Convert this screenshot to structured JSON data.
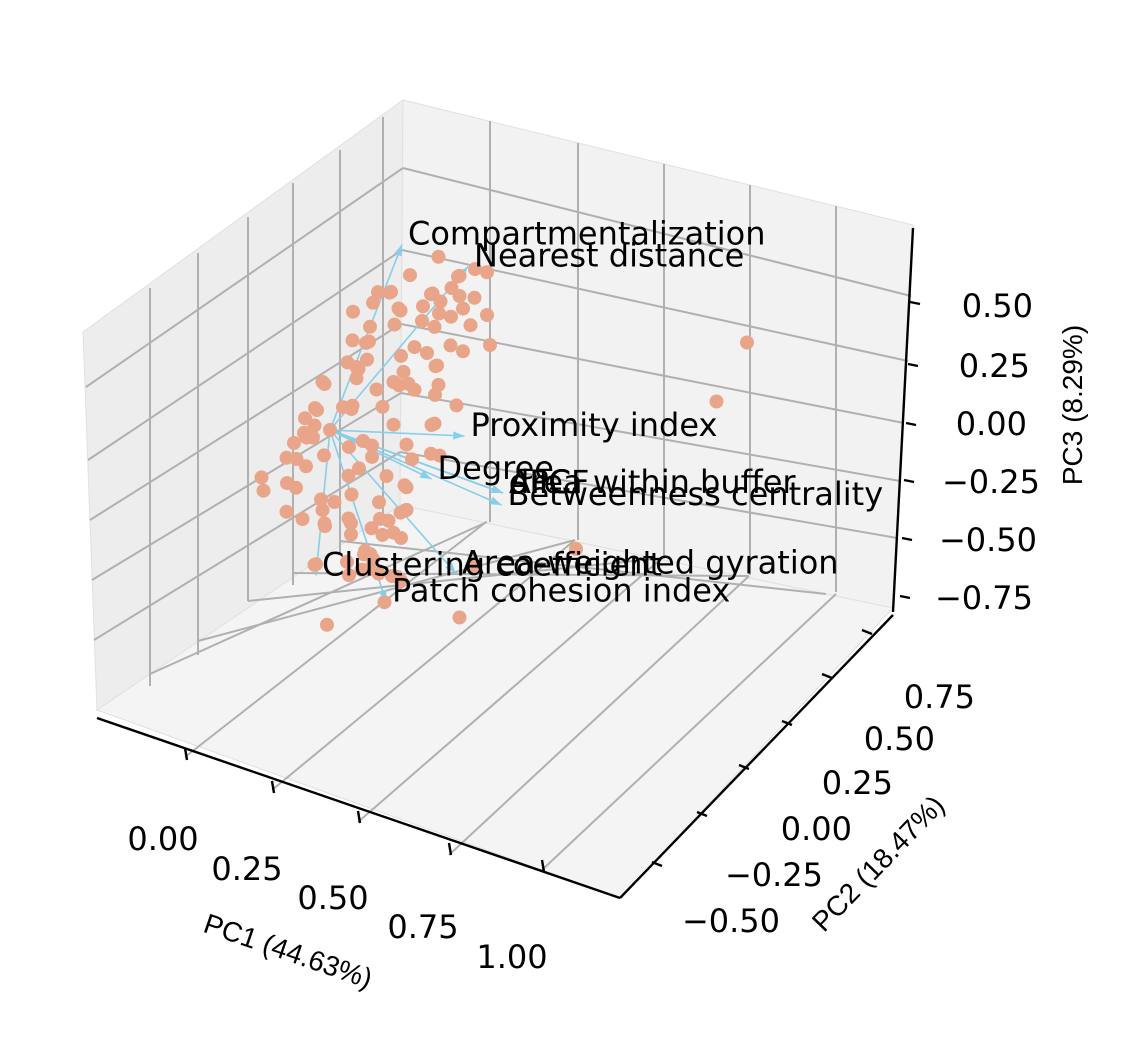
{
  "chart_data": {
    "type": "scatter",
    "projection": "3d",
    "grid": true,
    "title": "",
    "xlabel": "PC1 (44.63%)",
    "ylabel": "PC2 (18.47%)",
    "zlabel": "PC3 (8.29%)",
    "x_ticks": [
      "0.00",
      "0.25",
      "0.50",
      "0.75",
      "1.00"
    ],
    "y_ticks": [
      "−0.50",
      "−0.25",
      "0.00",
      "0.25",
      "0.50",
      "0.75"
    ],
    "z_ticks": [
      "−0.75",
      "−0.50",
      "−0.25",
      "0.00",
      "0.25",
      "0.50"
    ],
    "xlim": [
      -0.15,
      1.3
    ],
    "ylim": [
      -0.6,
      0.85
    ],
    "zlim": [
      -0.85,
      0.7
    ],
    "point_color": "#E9A58A",
    "loading_color": "#87CEEB",
    "loading_origin": [
      0.0,
      0.0,
      0.0
    ],
    "loadings": [
      {
        "label": "Compartmentalization",
        "x": 0.05,
        "y": 0.2,
        "z": 0.55
      },
      {
        "label": "Nearest distance",
        "x": 0.15,
        "y": 0.3,
        "z": 0.45
      },
      {
        "label": "Proximity index",
        "x": 0.3,
        "y": 0.1,
        "z": 0.05
      },
      {
        "label": "dPC",
        "x": 0.45,
        "y": 0.05,
        "z": -0.05
      },
      {
        "label": "dIIC",
        "x": 0.45,
        "y": 0.05,
        "z": -0.05
      },
      {
        "label": "dPCF",
        "x": 0.45,
        "y": 0.05,
        "z": -0.05
      },
      {
        "label": "Area within buffer",
        "x": 0.45,
        "y": 0.05,
        "z": -0.05
      },
      {
        "label": "Degree",
        "x": 0.2,
        "y": 0.1,
        "z": -0.15
      },
      {
        "label": "Betweenness centrality",
        "x": 0.4,
        "y": 0.1,
        "z": -0.15
      },
      {
        "label": "Area-weighted gyration",
        "x": 0.35,
        "y": 0.0,
        "z": -0.35
      },
      {
        "label": "Clustering coefficient",
        "x": -0.1,
        "y": 0.05,
        "z": -0.6
      },
      {
        "label": "Patch cohesion index",
        "x": 0.1,
        "y": 0.05,
        "z": -0.6
      }
    ],
    "points": [
      {
        "x": 0.3,
        "y": 0.1,
        "z": 0.55
      },
      {
        "x": 0.95,
        "y": 0.3,
        "z": 0.55
      },
      {
        "x": 0.9,
        "y": 0.25,
        "z": 0.35
      },
      {
        "x": 0.7,
        "y": 0.0,
        "z": -0.1
      },
      {
        "x": 0.4,
        "y": 0.0,
        "z": -0.3
      },
      {
        "x": 0.4,
        "y": -0.05,
        "z": -0.45
      },
      {
        "x": 0.2,
        "y": 0.15,
        "z": 0.45
      },
      {
        "x": 0.22,
        "y": 0.2,
        "z": 0.4
      },
      {
        "x": 0.02,
        "y": 0.05,
        "z": 0.05
      },
      {
        "x": 0.05,
        "y": 0.1,
        "z": 0.1
      },
      {
        "x": 0.08,
        "y": 0.15,
        "z": 0.2
      },
      {
        "x": 0.1,
        "y": 0.2,
        "z": 0.3
      },
      {
        "x": 0.12,
        "y": 0.15,
        "z": 0.25
      },
      {
        "x": 0.15,
        "y": 0.2,
        "z": 0.35
      },
      {
        "x": 0.1,
        "y": 0.1,
        "z": 0.15
      },
      {
        "x": 0.0,
        "y": 0.0,
        "z": 0.0
      },
      {
        "x": -0.05,
        "y": 0.0,
        "z": -0.05
      },
      {
        "x": -0.08,
        "y": 0.05,
        "z": 0.0
      },
      {
        "x": -0.1,
        "y": 0.1,
        "z": 0.05
      },
      {
        "x": -0.12,
        "y": 0.05,
        "z": -0.1
      },
      {
        "x": -0.05,
        "y": 0.15,
        "z": 0.1
      },
      {
        "x": 0.0,
        "y": 0.1,
        "z": 0.15
      },
      {
        "x": 0.05,
        "y": 0.05,
        "z": -0.05
      },
      {
        "x": 0.08,
        "y": 0.0,
        "z": -0.1
      },
      {
        "x": 0.1,
        "y": -0.05,
        "z": -0.15
      },
      {
        "x": 0.05,
        "y": -0.05,
        "z": -0.2
      },
      {
        "x": 0.0,
        "y": -0.1,
        "z": -0.25
      },
      {
        "x": 0.02,
        "y": -0.05,
        "z": -0.3
      },
      {
        "x": 0.05,
        "y": 0.0,
        "z": -0.35
      },
      {
        "x": 0.08,
        "y": -0.05,
        "z": -0.4
      },
      {
        "x": 0.1,
        "y": 0.0,
        "z": -0.45
      },
      {
        "x": 0.12,
        "y": 0.05,
        "z": -0.5
      },
      {
        "x": 0.06,
        "y": 0.05,
        "z": -0.45
      },
      {
        "x": 0.0,
        "y": 0.05,
        "z": -0.35
      },
      {
        "x": -0.03,
        "y": 0.0,
        "z": -0.3
      },
      {
        "x": -0.06,
        "y": -0.05,
        "z": -0.2
      },
      {
        "x": -0.1,
        "y": 0.0,
        "z": -0.15
      },
      {
        "x": -0.13,
        "y": 0.1,
        "z": -0.05
      },
      {
        "x": -0.15,
        "y": 0.15,
        "z": 0.0
      },
      {
        "x": -0.12,
        "y": 0.2,
        "z": 0.05
      },
      {
        "x": -0.1,
        "y": 0.25,
        "z": 0.1
      },
      {
        "x": -0.06,
        "y": 0.2,
        "z": 0.15
      },
      {
        "x": -0.02,
        "y": 0.15,
        "z": 0.2
      },
      {
        "x": 0.02,
        "y": 0.2,
        "z": 0.25
      },
      {
        "x": 0.06,
        "y": 0.25,
        "z": 0.3
      },
      {
        "x": 0.1,
        "y": 0.3,
        "z": 0.35
      },
      {
        "x": 0.14,
        "y": 0.25,
        "z": 0.3
      },
      {
        "x": 0.18,
        "y": 0.2,
        "z": 0.25
      },
      {
        "x": 0.16,
        "y": 0.1,
        "z": 0.15
      },
      {
        "x": 0.14,
        "y": 0.05,
        "z": 0.05
      },
      {
        "x": 0.12,
        "y": 0.0,
        "z": 0.0
      },
      {
        "x": 0.16,
        "y": 0.05,
        "z": 0.2
      },
      {
        "x": 0.2,
        "y": 0.1,
        "z": 0.3
      },
      {
        "x": 0.18,
        "y": 0.15,
        "z": 0.35
      },
      {
        "x": 0.04,
        "y": 0.0,
        "z": 0.1
      },
      {
        "x": 0.0,
        "y": -0.05,
        "z": 0.05
      },
      {
        "x": -0.02,
        "y": 0.0,
        "z": -0.1
      },
      {
        "x": 0.03,
        "y": 0.1,
        "z": -0.15
      },
      {
        "x": 0.07,
        "y": 0.1,
        "z": -0.2
      },
      {
        "x": 0.09,
        "y": 0.05,
        "z": -0.25
      },
      {
        "x": 0.11,
        "y": 0.0,
        "z": -0.3
      },
      {
        "x": 0.13,
        "y": -0.05,
        "z": -0.35
      },
      {
        "x": 0.03,
        "y": -0.1,
        "z": -0.4
      },
      {
        "x": -0.01,
        "y": -0.05,
        "z": -0.45
      },
      {
        "x": 0.04,
        "y": 0.0,
        "z": -0.5
      },
      {
        "x": 0.09,
        "y": 0.1,
        "z": -0.55
      },
      {
        "x": 0.14,
        "y": 0.0,
        "z": -0.55
      },
      {
        "x": 0.06,
        "y": -0.1,
        "z": -0.6
      },
      {
        "x": -0.04,
        "y": 0.1,
        "z": -0.25
      },
      {
        "x": -0.08,
        "y": 0.15,
        "z": -0.2
      },
      {
        "x": -0.11,
        "y": 0.2,
        "z": -0.1
      },
      {
        "x": -0.14,
        "y": 0.25,
        "z": -0.05
      },
      {
        "x": 0.01,
        "y": 0.25,
        "z": 0.0
      },
      {
        "x": 0.05,
        "y": 0.3,
        "z": 0.05
      },
      {
        "x": 0.09,
        "y": 0.25,
        "z": 0.1
      },
      {
        "x": 0.13,
        "y": 0.2,
        "z": 0.05
      },
      {
        "x": 0.17,
        "y": 0.15,
        "z": 0.0
      },
      {
        "x": 0.19,
        "y": 0.05,
        "z": -0.05
      },
      {
        "x": 0.21,
        "y": 0.0,
        "z": -0.1
      },
      {
        "x": 0.18,
        "y": -0.05,
        "z": -0.2
      },
      {
        "x": 0.16,
        "y": 0.0,
        "z": -0.25
      },
      {
        "x": 0.02,
        "y": 0.15,
        "z": 0.4
      },
      {
        "x": 0.07,
        "y": 0.2,
        "z": 0.45
      },
      {
        "x": 0.11,
        "y": 0.25,
        "z": 0.5
      },
      {
        "x": 0.17,
        "y": 0.3,
        "z": 0.45
      },
      {
        "x": 0.21,
        "y": 0.25,
        "z": 0.4
      },
      {
        "x": 0.24,
        "y": 0.2,
        "z": 0.35
      },
      {
        "x": 0.26,
        "y": 0.15,
        "z": 0.3
      },
      {
        "x": 0.23,
        "y": 0.1,
        "z": 0.2
      },
      {
        "x": 0.25,
        "y": 0.05,
        "z": 0.1
      },
      {
        "x": 0.22,
        "y": 0.0,
        "z": 0.05
      },
      {
        "x": 0.27,
        "y": 0.05,
        "z": 0.0
      },
      {
        "x": 0.24,
        "y": -0.05,
        "z": -0.15
      },
      {
        "x": 0.2,
        "y": -0.1,
        "z": -0.3
      },
      {
        "x": 0.17,
        "y": -0.05,
        "z": -0.4
      },
      {
        "x": 0.19,
        "y": 0.0,
        "z": -0.45
      },
      {
        "x": 0.15,
        "y": 0.05,
        "z": -0.35
      },
      {
        "x": 0.12,
        "y": 0.1,
        "z": -0.3
      },
      {
        "x": 0.08,
        "y": 0.15,
        "z": -0.35
      },
      {
        "x": 0.04,
        "y": 0.15,
        "z": -0.45
      },
      {
        "x": 0.0,
        "y": 0.1,
        "z": -0.5
      },
      {
        "x": -0.07,
        "y": 0.05,
        "z": -0.4
      },
      {
        "x": -0.09,
        "y": -0.05,
        "z": -0.3
      },
      {
        "x": -0.11,
        "y": -0.1,
        "z": -0.2
      },
      {
        "x": -0.13,
        "y": 0.0,
        "z": -0.25
      },
      {
        "x": -0.15,
        "y": 0.05,
        "z": -0.15
      },
      {
        "x": -0.16,
        "y": 0.1,
        "z": -0.1
      },
      {
        "x": -0.14,
        "y": 0.3,
        "z": 0.1
      },
      {
        "x": -0.1,
        "y": 0.35,
        "z": 0.15
      },
      {
        "x": -0.05,
        "y": 0.3,
        "z": 0.2
      },
      {
        "x": 0.0,
        "y": 0.35,
        "z": 0.25
      },
      {
        "x": 0.04,
        "y": 0.3,
        "z": 0.3
      },
      {
        "x": 0.08,
        "y": 0.35,
        "z": 0.35
      },
      {
        "x": 0.12,
        "y": 0.3,
        "z": 0.4
      },
      {
        "x": 0.16,
        "y": 0.35,
        "z": 0.4
      },
      {
        "x": 0.2,
        "y": 0.3,
        "z": 0.3
      },
      {
        "x": 0.25,
        "y": 0.25,
        "z": 0.25
      },
      {
        "x": 0.28,
        "y": 0.1,
        "z": 0.15
      },
      {
        "x": 0.29,
        "y": 0.0,
        "z": 0.05
      },
      {
        "x": 0.26,
        "y": -0.05,
        "z": -0.05
      },
      {
        "x": 0.23,
        "y": -0.1,
        "z": -0.2
      },
      {
        "x": 0.21,
        "y": -0.15,
        "z": -0.3
      },
      {
        "x": 0.14,
        "y": -0.1,
        "z": -0.2
      },
      {
        "x": 0.1,
        "y": -0.15,
        "z": -0.1
      },
      {
        "x": 0.06,
        "y": -0.15,
        "z": 0.0
      },
      {
        "x": 0.02,
        "y": -0.1,
        "z": 0.05
      },
      {
        "x": -0.04,
        "y": -0.1,
        "z": -0.05
      },
      {
        "x": -0.07,
        "y": -0.15,
        "z": -0.1
      },
      {
        "x": 0.11,
        "y": 0.05,
        "z": 0.1
      },
      {
        "x": 0.13,
        "y": 0.1,
        "z": 0.2
      },
      {
        "x": 0.07,
        "y": 0.05,
        "z": 0.25
      },
      {
        "x": 0.03,
        "y": 0.05,
        "z": 0.3
      },
      {
        "x": -0.01,
        "y": 0.1,
        "z": 0.35
      },
      {
        "x": -0.04,
        "y": 0.2,
        "z": 0.3
      },
      {
        "x": -0.08,
        "y": 0.3,
        "z": 0.25
      },
      {
        "x": -0.12,
        "y": 0.35,
        "z": 0.2
      }
    ]
  }
}
